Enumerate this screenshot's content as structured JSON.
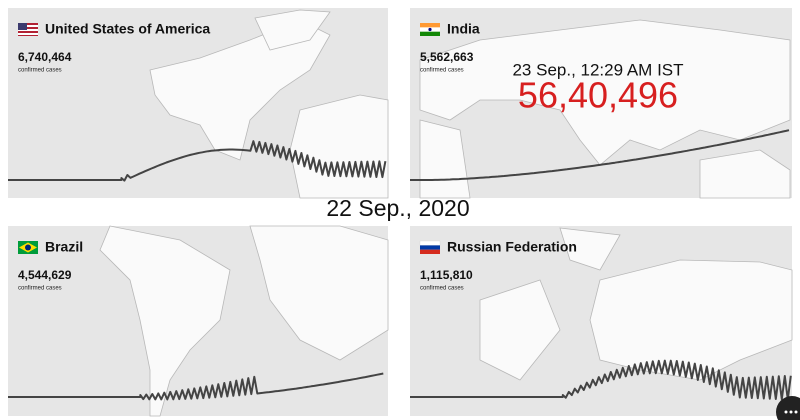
{
  "panels": [
    {
      "country": "United States of America",
      "cases": "6,740,464",
      "cases_label": "confirmed cases"
    },
    {
      "country": "India",
      "cases": "5,562,663",
      "cases_label": "confirmed cases"
    },
    {
      "country": "Brazil",
      "cases": "4,544,629",
      "cases_label": "confirmed cases"
    },
    {
      "country": "Russian Federation",
      "cases": "1,115,810",
      "cases_label": "confirmed cases"
    }
  ],
  "india_update": {
    "time": "23 Sep., 12:29 AM IST",
    "total": "56,40,496"
  },
  "date": "22 Sep., 2020"
}
